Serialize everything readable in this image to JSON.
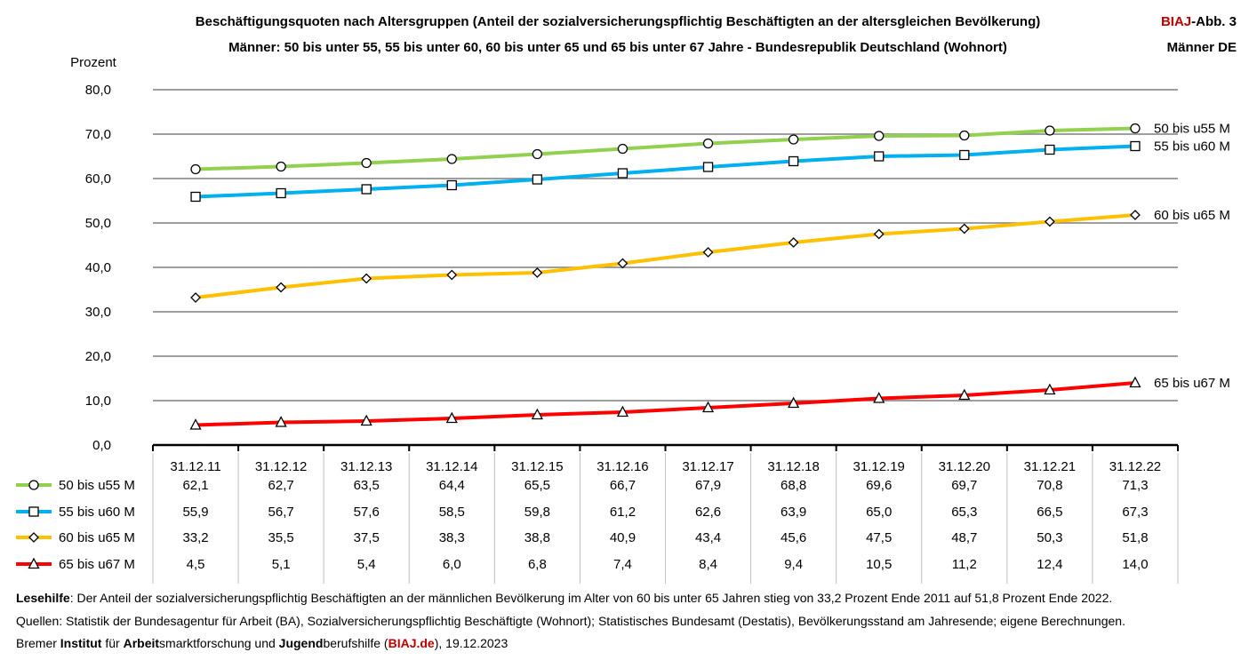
{
  "header": {
    "title_line1": "Beschäftigungsquoten nach Altersgruppen (Anteil der sozialversicherungspflichtig Beschäftigten an der altersgleichen Bevölkerung)",
    "title_line2": "Männer: 50 bis unter 55, 55 bis unter 60, 60 bis unter 65 und 65 bis unter 67 Jahre - Bundesrepublik Deutschland (Wohnort)",
    "badge_brand": "BIAJ",
    "badge_suffix": "-Abb. 3",
    "badge_line2": "Männer DE"
  },
  "chart_data": {
    "type": "line",
    "title": "Beschäftigungsquoten nach Altersgruppen",
    "ylabel": "Prozent",
    "xlabel": "",
    "ylim": [
      0,
      80
    ],
    "yticks": [
      "0,0",
      "10,0",
      "20,0",
      "30,0",
      "40,0",
      "50,0",
      "60,0",
      "70,0",
      "80,0"
    ],
    "categories": [
      "31.12.11",
      "31.12.12",
      "31.12.13",
      "31.12.14",
      "31.12.15",
      "31.12.16",
      "31.12.17",
      "31.12.18",
      "31.12.19",
      "31.12.20",
      "31.12.21",
      "31.12.22"
    ],
    "series": [
      {
        "name": "50 bis u55 M",
        "color": "#92d050",
        "marker": "circle",
        "values": [
          62.1,
          62.7,
          63.5,
          64.4,
          65.5,
          66.7,
          67.9,
          68.8,
          69.6,
          69.7,
          70.8,
          71.3
        ],
        "labels": [
          "62,1",
          "62,7",
          "63,5",
          "64,4",
          "65,5",
          "66,7",
          "67,9",
          "68,8",
          "69,6",
          "69,7",
          "70,8",
          "71,3"
        ]
      },
      {
        "name": "55 bis u60 M",
        "color": "#00b0f0",
        "marker": "square",
        "values": [
          55.9,
          56.7,
          57.6,
          58.5,
          59.8,
          61.2,
          62.6,
          63.9,
          65.0,
          65.3,
          66.5,
          67.3
        ],
        "labels": [
          "55,9",
          "56,7",
          "57,6",
          "58,5",
          "59,8",
          "61,2",
          "62,6",
          "63,9",
          "65,0",
          "65,3",
          "66,5",
          "67,3"
        ]
      },
      {
        "name": "60 bis u65 M",
        "color": "#ffc000",
        "marker": "diamond",
        "values": [
          33.2,
          35.5,
          37.5,
          38.3,
          38.8,
          40.9,
          43.4,
          45.6,
          47.5,
          48.7,
          50.3,
          51.8
        ],
        "labels": [
          "33,2",
          "35,5",
          "37,5",
          "38,3",
          "38,8",
          "40,9",
          "43,4",
          "45,6",
          "47,5",
          "48,7",
          "50,3",
          "51,8"
        ]
      },
      {
        "name": "65 bis u67 M",
        "color": "#ff0000",
        "marker": "triangle",
        "values": [
          4.5,
          5.1,
          5.4,
          6.0,
          6.8,
          7.4,
          8.4,
          9.4,
          10.5,
          11.2,
          12.4,
          14.0
        ],
        "labels": [
          "4,5",
          "5,1",
          "5,4",
          "6,0",
          "6,8",
          "7,4",
          "8,4",
          "9,4",
          "10,5",
          "11,2",
          "12,4",
          "14,0"
        ]
      }
    ]
  },
  "footer": {
    "lesehilfe_label": "Lesehilfe",
    "lesehilfe_text": ": Der Anteil der sozialversicherungspflichtig Beschäftigten an der männlichen Bevölkerung im Alter von 60 bis unter 65 Jahren stieg von 33,2 Prozent Ende 2011 auf 51,8 Prozent Ende 2022.",
    "quellen": "Quellen: Statistik der Bundesagentur für Arbeit (BA), Sozialversicherungspflichtig Beschäftigte (Wohnort); Statistisches Bundesamt (Destatis), Bevölkerungsstand am Jahresende; eigene Berechnungen.",
    "inst_1": "Bremer ",
    "inst_2": "Institut",
    "inst_3": " für ",
    "inst_4": "Arbeit",
    "inst_5": "smarktforschung und ",
    "inst_6": "Jugend",
    "inst_7": "berufshilfe (",
    "inst_8": "BIAJ.de",
    "inst_9": "), 19.12.2023"
  }
}
